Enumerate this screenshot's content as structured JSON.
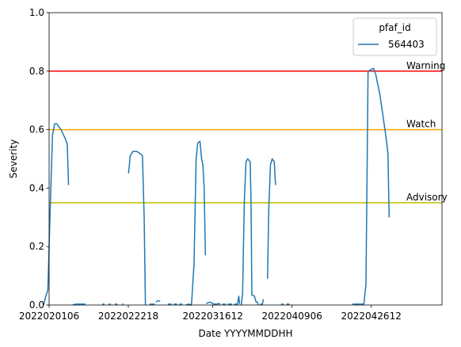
{
  "chart_data": {
    "type": "line",
    "title": "",
    "xlabel": "Date YYYYMMDDHH",
    "ylabel": "Severity",
    "ylim": [
      0,
      1.0
    ],
    "yticks": [
      0,
      0.2,
      0.4,
      0.6,
      0.8,
      1.0
    ],
    "ytick_labels": [
      "0.0",
      "0.2",
      "0.4",
      "0.6",
      "0.8",
      "1.0"
    ],
    "xlim": [
      0,
      93
    ],
    "xticks": [
      0,
      18.75,
      38.75,
      57.5,
      76.25
    ],
    "xtick_labels": [
      "2022020106",
      "2022022218",
      "2022031612",
      "2022040906",
      "2022042612"
    ],
    "grid": false,
    "legend": {
      "title": "pfaf_id",
      "position": "top-right",
      "entries": [
        "564403"
      ]
    },
    "thresholds": [
      {
        "label": "Warning",
        "value": 0.8,
        "color": "#ff0000"
      },
      {
        "label": "Watch",
        "value": 0.6,
        "color": "#ffa500"
      },
      {
        "label": "Advisory",
        "value": 0.35,
        "color": "#bfbf00"
      }
    ],
    "series": [
      {
        "name": "564403",
        "color": "#1f77b4",
        "segments": [
          [
            [
              -1.3,
              0.0
            ],
            [
              -0.8,
              0.03
            ],
            [
              -0.3,
              0.05
            ],
            [
              0.3,
              0.35
            ],
            [
              0.8,
              0.58
            ],
            [
              1.3,
              0.62
            ],
            [
              1.8,
              0.62
            ],
            [
              2.8,
              0.6
            ],
            [
              3.8,
              0.57
            ],
            [
              4.3,
              0.55
            ],
            [
              4.6,
              0.41
            ]
          ],
          [
            [
              5.6,
              0.0
            ],
            [
              5.9,
              0.002
            ],
            [
              6.6,
              0.003
            ],
            [
              7.6,
              0.003
            ],
            [
              8.6,
              0.003
            ]
          ],
          [
            [
              12.6,
              0.003
            ],
            [
              13.1,
              0.003
            ]
          ],
          [
            [
              14.1,
              0.003
            ],
            [
              14.6,
              0.003
            ]
          ],
          [
            [
              15.6,
              0.003
            ],
            [
              16.2,
              0.003
            ]
          ],
          [
            [
              17.3,
              0.003
            ],
            [
              17.6,
              0.003
            ]
          ],
          [
            [
              18.8,
              0.45
            ],
            [
              19.2,
              0.51
            ],
            [
              19.8,
              0.525
            ],
            [
              20.8,
              0.525
            ],
            [
              21.8,
              0.515
            ],
            [
              22.1,
              0.51
            ],
            [
              22.5,
              0.3
            ],
            [
              22.8,
              0.0
            ]
          ],
          [
            [
              23.8,
              0.003
            ],
            [
              25.0,
              0.003
            ]
          ],
          [
            [
              25.3,
              0.01
            ],
            [
              25.8,
              0.015
            ],
            [
              26.3,
              0.013
            ]
          ],
          [
            [
              28.1,
              0.003
            ],
            [
              29.0,
              0.003
            ]
          ],
          [
            [
              29.5,
              0.003
            ],
            [
              30.3,
              0.003
            ]
          ],
          [
            [
              30.8,
              0.003
            ],
            [
              31.5,
              0.003
            ]
          ],
          [
            [
              32.5,
              0.0
            ],
            [
              33.0,
              0.003
            ],
            [
              33.7,
              0.0
            ],
            [
              34.3,
              0.14
            ],
            [
              34.8,
              0.5
            ],
            [
              35.2,
              0.555
            ],
            [
              35.7,
              0.56
            ],
            [
              36.1,
              0.5
            ],
            [
              36.4,
              0.48
            ],
            [
              36.7,
              0.4
            ],
            [
              37.0,
              0.17
            ]
          ],
          [
            [
              37.2,
              0.005
            ],
            [
              37.6,
              0.008
            ],
            [
              38.1,
              0.01
            ],
            [
              38.7,
              0.005
            ],
            [
              39.1,
              0.003
            ],
            [
              39.7,
              0.003
            ],
            [
              40.1,
              0.005
            ],
            [
              40.5,
              0.003
            ]
          ],
          [
            [
              41.0,
              0.003
            ],
            [
              41.8,
              0.003
            ]
          ],
          [
            [
              42.3,
              0.003
            ],
            [
              43.3,
              0.003
            ]
          ],
          [
            [
              43.8,
              0.003
            ],
            [
              44.6,
              0.003
            ],
            [
              44.9,
              0.03
            ],
            [
              45.1,
              0.003
            ]
          ],
          [
            [
              45.5,
              0.0
            ],
            [
              45.8,
              0.04
            ],
            [
              46.2,
              0.35
            ],
            [
              46.6,
              0.49
            ],
            [
              47.0,
              0.5
            ],
            [
              47.6,
              0.49
            ],
            [
              47.8,
              0.35
            ],
            [
              48.0,
              0.035
            ],
            [
              48.6,
              0.03
            ],
            [
              49.0,
              0.01
            ],
            [
              49.3,
              0.01
            ],
            [
              49.5,
              0.0
            ]
          ],
          [
            [
              49.9,
              0.002
            ],
            [
              50.5,
              0.003
            ],
            [
              50.7,
              0.02
            ]
          ],
          [
            [
              51.7,
              0.09
            ],
            [
              52.0,
              0.33
            ],
            [
              52.4,
              0.48
            ],
            [
              52.8,
              0.5
            ],
            [
              53.3,
              0.49
            ],
            [
              53.6,
              0.41
            ]
          ],
          [
            [
              54.9,
              0.003
            ],
            [
              55.5,
              0.003
            ]
          ],
          [
            [
              56.2,
              0.003
            ],
            [
              56.9,
              0.003
            ]
          ],
          [
            [
              71.8,
              0.003
            ],
            [
              74.0,
              0.003
            ],
            [
              74.5,
              0.003
            ],
            [
              75.0,
              0.07
            ],
            [
              75.3,
              0.5
            ],
            [
              75.5,
              0.8
            ],
            [
              76.2,
              0.805
            ],
            [
              76.8,
              0.81
            ],
            [
              77.3,
              0.79
            ],
            [
              78.3,
              0.72
            ],
            [
              78.8,
              0.67
            ],
            [
              79.3,
              0.62
            ],
            [
              79.7,
              0.58
            ],
            [
              80.2,
              0.52
            ],
            [
              80.5,
              0.3
            ]
          ]
        ]
      }
    ]
  }
}
